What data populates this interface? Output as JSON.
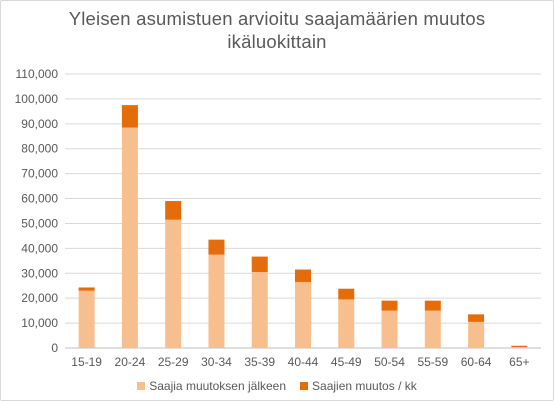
{
  "chart_data": {
    "type": "bar",
    "stacked": true,
    "title_lines": [
      "Yleisen asumistuen arvioitu saajamäärien  muutos",
      "ikäluokittain"
    ],
    "categories": [
      "15-19",
      "20-24",
      "25-29",
      "30-34",
      "35-39",
      "40-44",
      "45-49",
      "50-54",
      "55-59",
      "60-64",
      "65+"
    ],
    "series": [
      {
        "name": "Saajia muutoksen jälkeen",
        "color": "#f8bf8e",
        "values": [
          23000,
          88500,
          51500,
          37500,
          30500,
          26500,
          19500,
          15000,
          15000,
          10500,
          400
        ]
      },
      {
        "name": "Saajien muutos / kk",
        "color": "#e46c0a",
        "values": [
          1300,
          9000,
          7500,
          6000,
          6200,
          5000,
          4300,
          4000,
          4000,
          3000,
          500
        ]
      }
    ],
    "ylim": [
      0,
      110000
    ],
    "yticks": [
      "0",
      "10,000",
      "20,000",
      "30,000",
      "40,000",
      "50,000",
      "60,000",
      "70,000",
      "80,000",
      "90,000",
      "100,000",
      "110,000"
    ],
    "ytick_values": [
      0,
      10000,
      20000,
      30000,
      40000,
      50000,
      60000,
      70000,
      80000,
      90000,
      100000,
      110000
    ],
    "grid": true,
    "legend_position": "bottom"
  }
}
